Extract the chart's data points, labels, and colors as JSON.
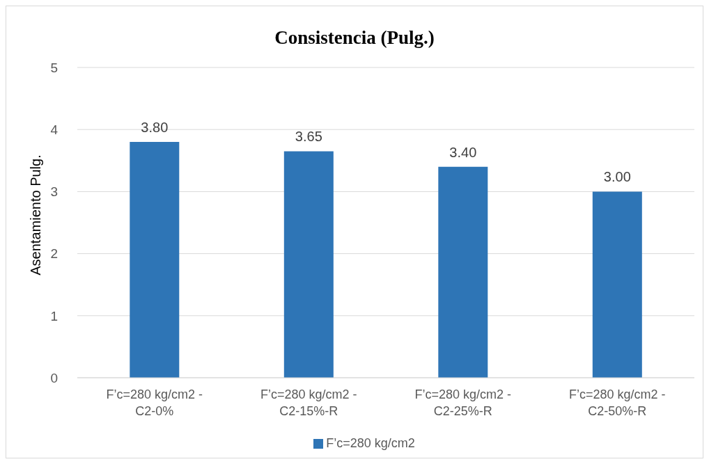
{
  "chart_data": {
    "type": "bar",
    "title": "Consistencia (Pulg.)",
    "ylabel": "Asentamiento Pulg.",
    "categories": [
      "F’c=280 kg/cm2 - C2-0%",
      "F’c=280 kg/cm2 - C2-15%-R",
      "F’c=280 kg/cm2 - C2-25%-R",
      "F’c=280 kg/cm2 - C2-50%-R"
    ],
    "series": [
      {
        "name": "F’c=280 kg/cm2",
        "color": "#2e75b6",
        "values": [
          3.8,
          3.65,
          3.4,
          3.0
        ],
        "value_labels": [
          "3.80",
          "3.65",
          "3.40",
          "3.00"
        ]
      }
    ],
    "ylim": [
      0,
      5
    ],
    "yticks": [
      0,
      1,
      2,
      3,
      4,
      5
    ],
    "grid": "y",
    "legend": "bottom"
  }
}
